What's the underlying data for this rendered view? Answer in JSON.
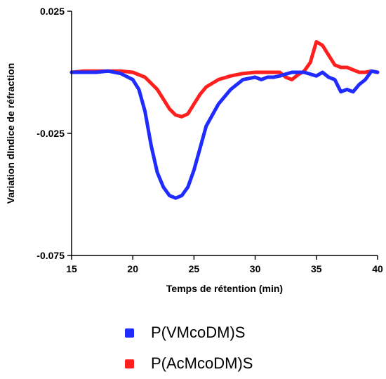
{
  "chart_data": {
    "type": "line",
    "xlabel": "Temps de rétention (min)",
    "ylabel": "Variation dIndice de réfraction",
    "xlim": [
      15,
      40
    ],
    "ylim": [
      -0.075,
      0.025
    ],
    "x_ticks": [
      "15",
      "20",
      "25",
      "30",
      "35",
      "40"
    ],
    "y_ticks": [
      "0.025",
      "-0.025",
      "-0.075"
    ],
    "y_tick_values": [
      0.025,
      -0.025,
      -0.075
    ],
    "legend_position": "bottom",
    "grid": false,
    "series": [
      {
        "name": "P(VMcoDM)S",
        "color": "#1f2bff",
        "x": [
          15,
          16,
          17,
          18,
          19,
          20,
          20.5,
          21,
          21.5,
          22,
          22.5,
          23,
          23.5,
          24,
          24.5,
          25,
          25.5,
          26,
          27,
          28,
          29,
          30,
          30.5,
          31,
          31.5,
          32,
          33,
          34,
          35,
          35.5,
          36,
          36.5,
          37,
          37.5,
          38,
          38.5,
          39,
          39.5,
          40
        ],
        "y": [
          0.0,
          0.0,
          0.0,
          0.0005,
          -0.0005,
          -0.003,
          -0.007,
          -0.016,
          -0.03,
          -0.041,
          -0.047,
          -0.0505,
          -0.0515,
          -0.0505,
          -0.047,
          -0.04,
          -0.031,
          -0.022,
          -0.013,
          -0.007,
          -0.003,
          -0.002,
          -0.003,
          -0.002,
          -0.002,
          -0.0015,
          0.0,
          0.0,
          -0.0015,
          0.0,
          -0.002,
          -0.003,
          -0.008,
          -0.007,
          -0.008,
          -0.005,
          -0.003,
          0.0005,
          0.0
        ]
      },
      {
        "name": "P(AcMcoDM)S",
        "color": "#ff1f1f",
        "x": [
          15,
          16,
          17,
          18,
          19,
          20,
          21,
          22,
          23,
          23.5,
          24,
          24.5,
          25,
          25.5,
          26,
          27,
          28,
          29,
          30,
          31,
          32,
          32.5,
          33,
          33.5,
          34,
          34.5,
          35,
          35.5,
          36,
          36.5,
          37,
          37.5,
          38,
          38.5,
          39,
          39.5,
          40
        ],
        "y": [
          0.0,
          0.0005,
          0.0005,
          0.0005,
          0.0005,
          0.0,
          -0.002,
          -0.007,
          -0.015,
          -0.0175,
          -0.0182,
          -0.017,
          -0.013,
          -0.009,
          -0.006,
          -0.003,
          -0.0015,
          -0.0005,
          0.0,
          0.0,
          0.0,
          -0.002,
          -0.003,
          -0.001,
          0.0005,
          0.004,
          0.0125,
          0.011,
          0.007,
          0.003,
          0.002,
          0.002,
          0.001,
          0.0,
          0.0,
          0.0005,
          0.0
        ]
      }
    ]
  }
}
